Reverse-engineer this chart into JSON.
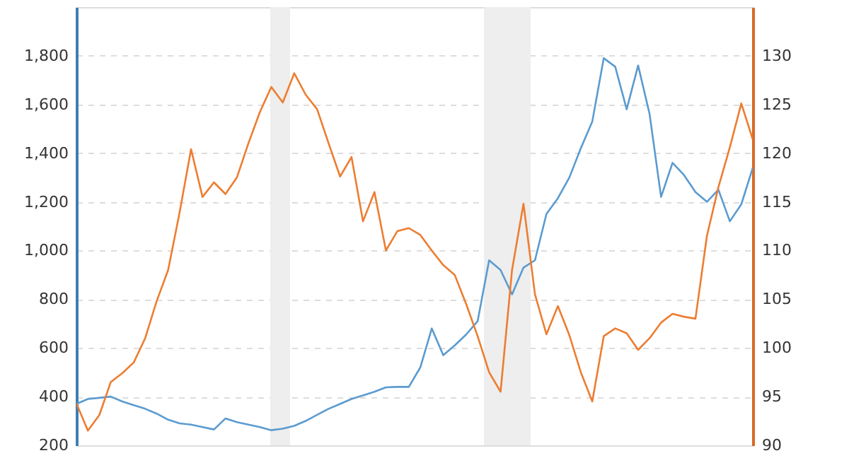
{
  "chart_data": {
    "type": "line",
    "categories": [
      null,
      null,
      null,
      null,
      null,
      null,
      null,
      null,
      null,
      null,
      null,
      null,
      null,
      null,
      null,
      null,
      null,
      null,
      null,
      null,
      null,
      null,
      null,
      null,
      null,
      null,
      null,
      null,
      null,
      null,
      null,
      null,
      null,
      null,
      null,
      null,
      null,
      null,
      null,
      null,
      null,
      null,
      null,
      null,
      null,
      null,
      null,
      null,
      null,
      null,
      null,
      null,
      null,
      null,
      null,
      null,
      null,
      null,
      null,
      null
    ],
    "ylim": [
      200,
      2000
    ],
    "yticks": [
      200,
      400,
      600,
      800,
      {
        "value": 1000,
        "label": "1,000"
      },
      {
        "value": 1200,
        "label": "1,200"
      },
      {
        "value": 1400,
        "label": "1,400"
      },
      {
        "value": 1600,
        "label": "1,600"
      },
      {
        "value": 1800,
        "label": "1,800"
      }
    ],
    "y2lim": [
      90,
      135
    ],
    "y2ticks": [
      90,
      95,
      100,
      105,
      110,
      115,
      120,
      125,
      130
    ],
    "tick_labels": "y",
    "grid": "y",
    "marker": "none",
    "line_style": "solid",
    "series": [
      {
        "color": "#5b9bd0",
        "values": [
          370,
          390,
          395,
          400,
          380,
          365,
          350,
          330,
          305,
          290,
          285,
          275,
          265,
          310,
          295,
          285,
          275,
          262,
          268,
          280,
          300,
          325,
          350,
          370,
          390,
          405,
          420,
          438,
          440,
          440,
          520,
          680,
          570,
          610,
          655,
          710,
          960,
          920,
          820,
          930,
          960,
          1150,
          1215,
          1300,
          1420,
          1530,
          1790,
          1755,
          1580,
          1760,
          1560,
          1220,
          1360,
          1310,
          1240,
          1200,
          1250,
          1120,
          1190,
          1340
        ]
      },
      {
        "color": "#ed7d31",
        "axis": "y2",
        "values": [
          94.3,
          91.5,
          93.1,
          96.5,
          97.4,
          98.5,
          101.0,
          104.8,
          108.0,
          113.9,
          120.4,
          115.5,
          117.0,
          115.8,
          117.5,
          121.0,
          124.2,
          126.8,
          125.2,
          128.2,
          126.0,
          124.5,
          121.0,
          117.6,
          119.6,
          113.0,
          116.0,
          110.0,
          112.0,
          112.3,
          111.6,
          110.0,
          108.5,
          107.5,
          104.5,
          101.2,
          97.5,
          95.5,
          108.0,
          114.8,
          105.5,
          101.4,
          104.3,
          101.3,
          97.5,
          94.5,
          101.2,
          102.0,
          101.5,
          99.8,
          101.0,
          102.6,
          103.5,
          103.2,
          103.0,
          111.5,
          116.5,
          120.6,
          125.1,
          121.4
        ]
      }
    ]
  }
}
